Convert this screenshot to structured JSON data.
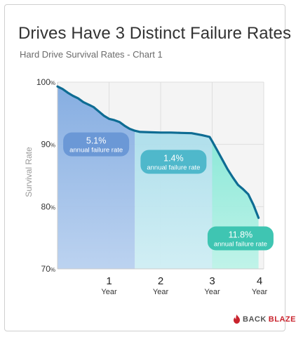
{
  "chart_data": {
    "type": "line",
    "title": "Drives Have 3 Distinct Failure Rates",
    "subtitle": "Hard Drive Survival Rates - Chart 1",
    "ylabel": "Survival Rate",
    "ylim": [
      70,
      100
    ],
    "xlim": [
      0,
      4
    ],
    "y_ticks": [
      {
        "value": 100,
        "num": "100",
        "unit": "%"
      },
      {
        "value": 90,
        "num": "90",
        "unit": "%"
      },
      {
        "value": 80,
        "num": "80",
        "unit": "%"
      },
      {
        "value": 70,
        "num": "70",
        "unit": "%"
      }
    ],
    "x_ticks": [
      {
        "value": 1,
        "num": "1",
        "unit": "Year"
      },
      {
        "value": 2,
        "num": "2",
        "unit": "Year"
      },
      {
        "value": 3,
        "num": "3",
        "unit": "Year"
      },
      {
        "value": 4,
        "num": "4",
        "unit": "Year"
      }
    ],
    "grid": true,
    "series": [
      {
        "x": [
          0,
          0.1,
          0.2,
          0.3,
          0.4,
          0.5,
          0.6,
          0.7,
          0.8,
          0.9,
          1.0,
          1.1,
          1.2,
          1.3,
          1.4,
          1.5,
          1.6,
          1.8,
          2.0,
          2.2,
          2.4,
          2.6,
          2.8,
          2.95,
          3.0,
          3.1,
          3.2,
          3.3,
          3.4,
          3.5,
          3.6,
          3.7,
          3.8,
          3.9
        ],
        "y": [
          99.3,
          98.9,
          98.3,
          97.8,
          97.4,
          96.8,
          96.4,
          96.0,
          95.3,
          94.6,
          94.1,
          93.9,
          93.6,
          93.0,
          92.5,
          92.2,
          92.0,
          91.95,
          91.9,
          91.9,
          91.85,
          91.8,
          91.5,
          91.2,
          90.5,
          89.0,
          87.5,
          86.0,
          84.7,
          83.5,
          82.8,
          82.0,
          80.3,
          78.2
        ]
      }
    ],
    "regions": [
      {
        "x0": 0,
        "x1": 1.5,
        "color": "#a0c4ea"
      },
      {
        "x0": 1.5,
        "x1": 3.0,
        "color": "#b8e2ec"
      },
      {
        "x0": 3.0,
        "x1": 4.0,
        "color": "#a6ecdf"
      }
    ],
    "annotations": [
      {
        "rate": "5.1%",
        "text": "annual failure rate",
        "x": 0.75,
        "y": 90.0,
        "color": "#6b98d6"
      },
      {
        "rate": "1.4%",
        "text": "annual failure rate",
        "x": 2.25,
        "y": 87.2,
        "color": "#4fb8cb"
      },
      {
        "rate": "11.8%",
        "text": "annual failure rate",
        "x": 3.55,
        "y": 74.9,
        "color": "#3fc5b2"
      }
    ],
    "line_color": "#0e6c93"
  },
  "brand": {
    "back": "BACK",
    "blaze": "BLAZE"
  }
}
